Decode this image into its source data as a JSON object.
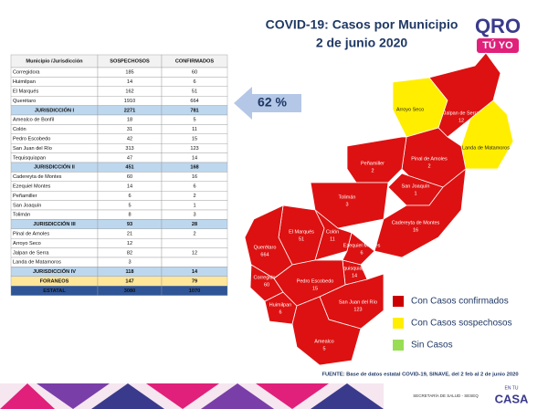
{
  "title_line1": "COVID-19: Casos por Municipio",
  "title_line2": "2 de junio 2020",
  "logo": {
    "main": "QRO",
    "sub": "TÚ YO"
  },
  "badge": "62 %",
  "table": {
    "header": [
      "Municipio /Jurisdicción",
      "SOSPECHOSOS",
      "CONFIRMADOS"
    ],
    "jurisdictions": [
      {
        "rows": [
          [
            "Corregidora",
            185,
            60
          ],
          [
            "Huimilpan",
            14,
            6
          ],
          [
            "El Marqués",
            162,
            51
          ],
          [
            "Querétaro",
            1910,
            664
          ]
        ],
        "total": [
          "JURISDICCIÓN I",
          2271,
          781
        ]
      },
      {
        "rows": [
          [
            "Amealco de Bonfil",
            18,
            5
          ],
          [
            "Colón",
            31,
            11
          ],
          [
            "Pedro Escobedo",
            42,
            15
          ],
          [
            "San Juan del Río",
            313,
            123
          ],
          [
            "Tequisquiapan",
            47,
            14
          ]
        ],
        "total": [
          "JURISDICCIÓN II",
          451,
          168
        ]
      },
      {
        "rows": [
          [
            "Cadereyta de Montes",
            60,
            16
          ],
          [
            "Ezequiel Montes",
            14,
            6
          ],
          [
            "Peñamiller",
            6,
            2
          ],
          [
            "San Joaquín",
            5,
            1
          ],
          [
            "Tolimán",
            8,
            3
          ]
        ],
        "total": [
          "JURISDICCIÓN III",
          93,
          28
        ]
      },
      {
        "rows": [
          [
            "Pinal de Amoles",
            21,
            2
          ],
          [
            "Arroyo Seco",
            12,
            null
          ],
          [
            "Jalpan de Serra",
            82,
            12
          ],
          [
            "Landa de Matamoros",
            3,
            null
          ]
        ],
        "total": [
          "JURISDICCIÓN IV",
          118,
          14
        ]
      }
    ],
    "foraneos": [
      "FORANEOS",
      147,
      79
    ],
    "estatal": [
      "ESTATAL",
      3080,
      1070
    ]
  },
  "map": {
    "regions": [
      {
        "name": "Arroyo Seco",
        "color": "#ffee00"
      },
      {
        "name": "Jalpan de Serra",
        "count": 12,
        "color": "#dd1111"
      },
      {
        "name": "Landa de Matamoros",
        "color": "#ffee00"
      },
      {
        "name": "Pinal de Amoles",
        "count": 2,
        "color": "#dd1111"
      },
      {
        "name": "Peñamiller",
        "count": 2,
        "color": "#dd1111"
      },
      {
        "name": "San Joaquín",
        "count": 1,
        "color": "#dd1111"
      },
      {
        "name": "Tolimán",
        "count": 3,
        "color": "#dd1111"
      },
      {
        "name": "Cadereyta de Montes",
        "count": 16,
        "color": "#dd1111"
      },
      {
        "name": "El Marqués",
        "count": 51,
        "color": "#dd1111"
      },
      {
        "name": "Colón",
        "count": 11,
        "color": "#dd1111"
      },
      {
        "name": "Querétaro",
        "count": 664,
        "color": "#dd1111"
      },
      {
        "name": "Ezequiel Montes",
        "count": 6,
        "color": "#dd1111"
      },
      {
        "name": "Tequisquiapan",
        "count": 14,
        "color": "#dd1111"
      },
      {
        "name": "Corregidora",
        "count": 60,
        "color": "#dd1111"
      },
      {
        "name": "Huimilpan",
        "count": 6,
        "color": "#dd1111"
      },
      {
        "name": "Pedro Escobedo",
        "count": 15,
        "color": "#dd1111"
      },
      {
        "name": "San Juan del Río",
        "count": 123,
        "color": "#dd1111"
      },
      {
        "name": "Amealco",
        "count": 5,
        "color": "#dd1111"
      }
    ]
  },
  "legend": [
    {
      "label": "Con Casos confirmados",
      "color": "#cc0000"
    },
    {
      "label": "Con Casos sospechosos",
      "color": "#ffee00"
    },
    {
      "label": "Sin Casos",
      "color": "#99dd55"
    }
  ],
  "source": "FUENTE: Base de datos estatal COVID-19, SINAVE, del 2 feb al 2 de junio 2020",
  "footer": {
    "agency": "SECRETARÍA DE SALUD - SESEQ",
    "campaign_top": "EN TU",
    "campaign_main": "CASA"
  }
}
